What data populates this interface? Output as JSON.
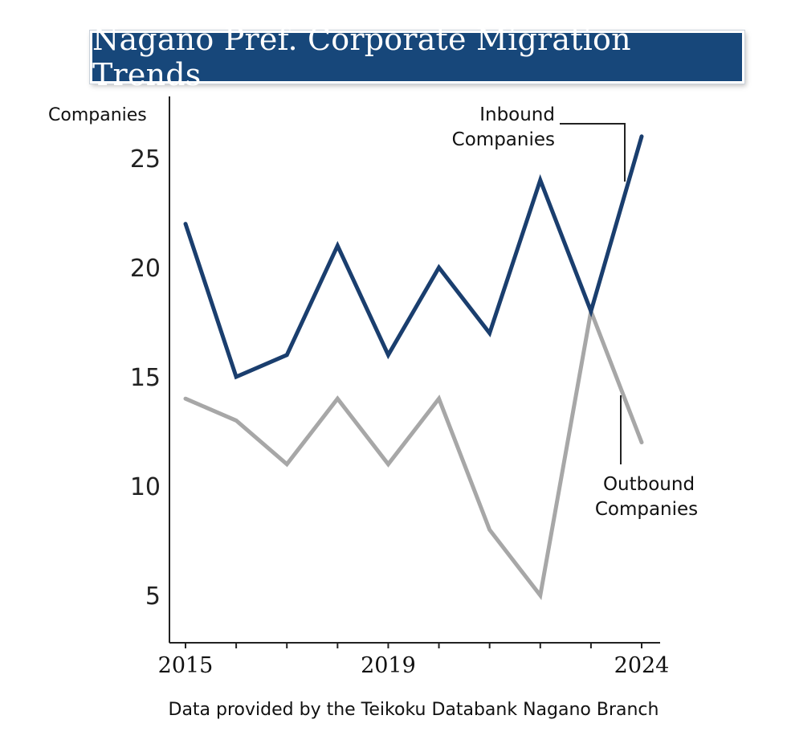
{
  "title": "Nagano Pref. Corporate Migration Trends",
  "source": "Data provided by the Teikoku Databank Nagano Branch",
  "chart_data": {
    "type": "line",
    "title": "Nagano Pref. Corporate Migration Trends",
    "ylabel": "Companies",
    "xlabel": "",
    "x": [
      2015,
      2016,
      2017,
      2018,
      2019,
      2020,
      2021,
      2022,
      2023,
      2024
    ],
    "x_tick_labels": [
      "2015",
      "2019",
      "2024"
    ],
    "x_tick_values": [
      2015,
      2019,
      2024
    ],
    "y_ticks": [
      5,
      10,
      15,
      20,
      25
    ],
    "ylim": [
      2,
      29
    ],
    "grid": false,
    "series": [
      {
        "name": "Inbound Companies",
        "color": "#1a3e6e",
        "values": [
          22,
          15,
          16,
          21,
          16,
          20,
          17,
          24,
          18,
          26
        ]
      },
      {
        "name": "Outbound Companies",
        "color": "#a7a7a7",
        "values": [
          14,
          13,
          11,
          14,
          11,
          14,
          8,
          5,
          18,
          12
        ]
      }
    ],
    "annotations": {
      "inbound": [
        "Inbound",
        "Companies"
      ],
      "outbound": [
        "Outbound",
        "Companies"
      ]
    }
  }
}
